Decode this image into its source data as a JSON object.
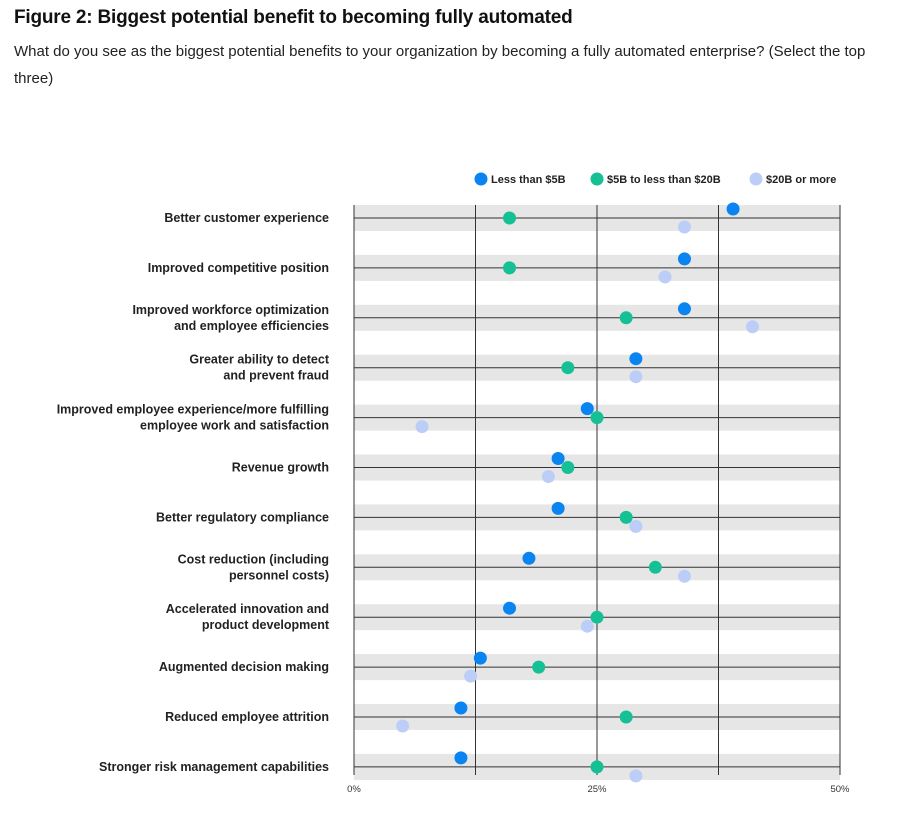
{
  "title": "Figure 2: Biggest potential benefit to becoming fully automated",
  "subtitle": "What do you see as the biggest potential benefits to your organization by becoming a fully automated enterprise? (Select the top three)",
  "colors": {
    "series_1": "#0a84f0",
    "series_2": "#15c194",
    "series_3": "#bccdf8",
    "band": "#e6e6e6",
    "grid": "#333333"
  },
  "chart_data": {
    "type": "scatter",
    "title": "Figure 2: Biggest potential benefit to becoming fully automated",
    "xlabel": "",
    "ylabel": "",
    "xlim": [
      0,
      50
    ],
    "x_ticks": [
      "0%",
      "25%",
      "50%"
    ],
    "legend_position": "top-right",
    "categories": [
      [
        "Better customer experience"
      ],
      [
        "Improved competitive position"
      ],
      [
        "Improved workforce optimization",
        "and employee efficiencies"
      ],
      [
        "Greater ability to detect",
        "and prevent fraud"
      ],
      [
        "Improved employee experience/more fulfilling",
        "employee work and satisfaction"
      ],
      [
        "Revenue growth"
      ],
      [
        "Better regulatory compliance"
      ],
      [
        "Cost reduction (including",
        "personnel costs)"
      ],
      [
        "Accelerated innovation and",
        "product development"
      ],
      [
        "Augmented decision making"
      ],
      [
        "Reduced employee attrition"
      ],
      [
        "Stronger risk management capabilities"
      ]
    ],
    "series": [
      {
        "name": "Less than $5B",
        "color": "#0a84f0",
        "values": [
          39,
          34,
          34,
          29,
          24,
          21,
          21,
          18,
          16,
          13,
          11,
          11
        ]
      },
      {
        "name": "$5B to less than $20B",
        "color": "#15c194",
        "values": [
          16,
          16,
          28,
          22,
          25,
          22,
          28,
          31,
          25,
          19,
          28,
          25
        ]
      },
      {
        "name": "$20B or more",
        "color": "#bccdf8",
        "values": [
          34,
          32,
          41,
          29,
          7,
          20,
          29,
          34,
          24,
          12,
          5,
          29
        ]
      }
    ]
  }
}
